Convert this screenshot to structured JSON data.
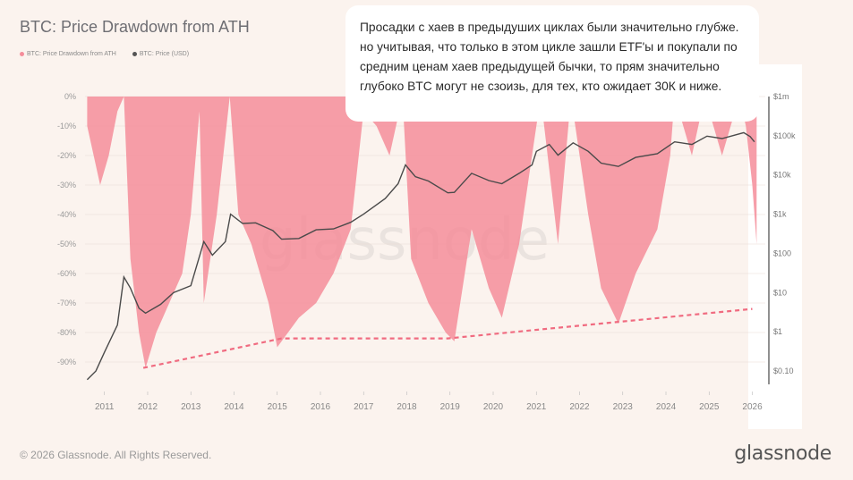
{
  "header": {
    "title": "BTC: Price Drawdown from ATH"
  },
  "legend": [
    {
      "label": "BTC: Price Drawdown from ATH",
      "color": "#f58d9a"
    },
    {
      "label": "BTC: Price (USD)",
      "color": "#555555"
    }
  ],
  "comment": {
    "text": "Просадки с хаев в предыдуших циклах были значительно глубже. но учитывая, что только в этом цикле зашли ETF'ы и покупали по средним ценам хаев предыдущей бычки, то прям значительно глубоко BTC могут не сзоизь, для тех, кто ожидает 30К и ниже."
  },
  "footer": {
    "copyright": "© 2026 Glassnode. All Rights Reserved.",
    "brand": "glassnode",
    "watermark": "glassnode"
  },
  "chart_data": {
    "type": "area",
    "x_ticks": [
      "2011",
      "2012",
      "2013",
      "2014",
      "2015",
      "2016",
      "2017",
      "2018",
      "2019",
      "2020",
      "2021",
      "2022",
      "2023",
      "2024",
      "2025",
      "2026"
    ],
    "y_left_ticks": [
      "0%",
      "-10%",
      "-20%",
      "-30%",
      "-40%",
      "-50%",
      "-60%",
      "-70%",
      "-80%",
      "-90%"
    ],
    "y_right_ticks": [
      "$1m",
      "$100k",
      "$10k",
      "$1k",
      "$100",
      "$10",
      "$1",
      "$0.10"
    ],
    "y_left_range": [
      -100,
      0
    ],
    "y_right_range_log": [
      0.03,
      1000000
    ],
    "series": [
      {
        "name": "BTC: Price Drawdown from ATH",
        "color": "#f58d9a",
        "points": [
          [
            2010.6,
            -10
          ],
          [
            2010.9,
            -30
          ],
          [
            2011.1,
            -20
          ],
          [
            2011.3,
            -5
          ],
          [
            2011.45,
            0
          ],
          [
            2011.6,
            -55
          ],
          [
            2011.8,
            -80
          ],
          [
            2011.95,
            -92
          ],
          [
            2012.2,
            -80
          ],
          [
            2012.5,
            -70
          ],
          [
            2012.8,
            -60
          ],
          [
            2013.0,
            -40
          ],
          [
            2013.2,
            -5
          ],
          [
            2013.3,
            -70
          ],
          [
            2013.6,
            -40
          ],
          [
            2013.9,
            0
          ],
          [
            2014.1,
            -40
          ],
          [
            2014.4,
            -50
          ],
          [
            2014.8,
            -70
          ],
          [
            2015.0,
            -85
          ],
          [
            2015.5,
            -75
          ],
          [
            2015.9,
            -70
          ],
          [
            2016.3,
            -60
          ],
          [
            2016.7,
            -45
          ],
          [
            2017.0,
            -5
          ],
          [
            2017.3,
            -10
          ],
          [
            2017.6,
            -20
          ],
          [
            2017.9,
            0
          ],
          [
            2018.1,
            -55
          ],
          [
            2018.5,
            -70
          ],
          [
            2018.9,
            -80
          ],
          [
            2019.1,
            -83
          ],
          [
            2019.5,
            -45
          ],
          [
            2019.9,
            -65
          ],
          [
            2020.2,
            -75
          ],
          [
            2020.6,
            -50
          ],
          [
            2020.9,
            -20
          ],
          [
            2021.1,
            0
          ],
          [
            2021.5,
            -50
          ],
          [
            2021.8,
            0
          ],
          [
            2022.2,
            -40
          ],
          [
            2022.5,
            -65
          ],
          [
            2022.9,
            -77
          ],
          [
            2023.3,
            -60
          ],
          [
            2023.8,
            -45
          ],
          [
            2024.1,
            -20
          ],
          [
            2024.2,
            0
          ],
          [
            2024.6,
            -20
          ],
          [
            2024.9,
            0
          ],
          [
            2025.3,
            -20
          ],
          [
            2025.7,
            0
          ],
          [
            2025.85,
            -10
          ],
          [
            2026.0,
            -30
          ],
          [
            2026.1,
            -50
          ]
        ]
      },
      {
        "name": "BTC: Price (USD)",
        "color": "#4a4a4a",
        "points": [
          [
            2010.6,
            0.06
          ],
          [
            2010.8,
            0.1
          ],
          [
            2011.0,
            0.3
          ],
          [
            2011.3,
            1.5
          ],
          [
            2011.45,
            25
          ],
          [
            2011.6,
            13
          ],
          [
            2011.8,
            4
          ],
          [
            2011.95,
            3
          ],
          [
            2012.3,
            5
          ],
          [
            2012.6,
            10
          ],
          [
            2013.0,
            15
          ],
          [
            2013.3,
            200
          ],
          [
            2013.5,
            90
          ],
          [
            2013.8,
            200
          ],
          [
            2013.92,
            1000
          ],
          [
            2014.2,
            580
          ],
          [
            2014.5,
            600
          ],
          [
            2014.9,
            380
          ],
          [
            2015.1,
            230
          ],
          [
            2015.5,
            240
          ],
          [
            2015.9,
            400
          ],
          [
            2016.3,
            420
          ],
          [
            2016.7,
            620
          ],
          [
            2017.0,
            1000
          ],
          [
            2017.5,
            2500
          ],
          [
            2017.8,
            6000
          ],
          [
            2017.97,
            18000
          ],
          [
            2018.2,
            9000
          ],
          [
            2018.5,
            7000
          ],
          [
            2018.95,
            3500
          ],
          [
            2019.1,
            3600
          ],
          [
            2019.5,
            11000
          ],
          [
            2019.9,
            7200
          ],
          [
            2020.2,
            6000
          ],
          [
            2020.6,
            11000
          ],
          [
            2020.9,
            18000
          ],
          [
            2021.0,
            40000
          ],
          [
            2021.3,
            60000
          ],
          [
            2021.5,
            32000
          ],
          [
            2021.85,
            66000
          ],
          [
            2022.2,
            40000
          ],
          [
            2022.5,
            20000
          ],
          [
            2022.9,
            16500
          ],
          [
            2023.3,
            28000
          ],
          [
            2023.8,
            35000
          ],
          [
            2024.2,
            70000
          ],
          [
            2024.6,
            60000
          ],
          [
            2024.95,
            98000
          ],
          [
            2025.3,
            85000
          ],
          [
            2025.8,
            120000
          ],
          [
            2025.95,
            95000
          ],
          [
            2026.05,
            70000
          ]
        ]
      }
    ],
    "annotation": {
      "type": "dashed-trend",
      "color": "#f06b80",
      "points": [
        [
          2011.9,
          -92
        ],
        [
          2015.1,
          -82
        ],
        [
          2018.95,
          -82
        ],
        [
          2026.0,
          -72
        ]
      ]
    },
    "grid": true,
    "legend_position": "top-left"
  }
}
